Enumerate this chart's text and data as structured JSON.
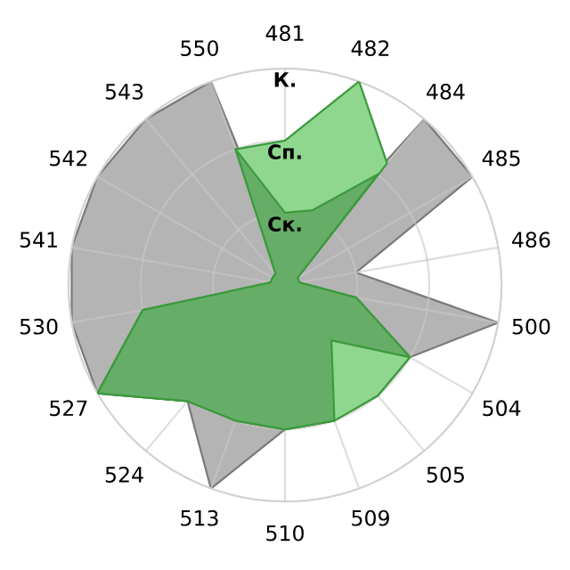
{
  "chart_data": {
    "type": "radar",
    "categories": [
      "481",
      "482",
      "484",
      "485",
      "486",
      "500",
      "504",
      "505",
      "509",
      "510",
      "513",
      "524",
      "527",
      "530",
      "541",
      "542",
      "543",
      "550"
    ],
    "series": [
      {
        "color": "#b4b4b4",
        "values": [
          0.3,
          0.3,
          3,
          3,
          1,
          3,
          2,
          2,
          2,
          2,
          3,
          2.1,
          3,
          3,
          3,
          3,
          3,
          3
        ]
      },
      {
        "color": "#8fd68f",
        "values": [
          2,
          3,
          2.2,
          0.2,
          0.2,
          1,
          2,
          2,
          2,
          2,
          2,
          2.1,
          3,
          2,
          0.2,
          0.2,
          0.2,
          2
        ]
      },
      {
        "color": "#66ae68",
        "values": [
          1,
          1.1,
          2,
          0.2,
          0.2,
          1,
          2,
          1,
          2,
          2,
          2,
          2.1,
          3,
          2,
          0.2,
          0.2,
          0.2,
          2
        ]
      }
    ],
    "ylim": [
      0,
      3
    ],
    "yticks": [
      {
        "value": 1,
        "label": "Ск."
      },
      {
        "value": 2,
        "label": "Сп."
      },
      {
        "value": 3,
        "label": "К."
      }
    ],
    "grid": true
  }
}
